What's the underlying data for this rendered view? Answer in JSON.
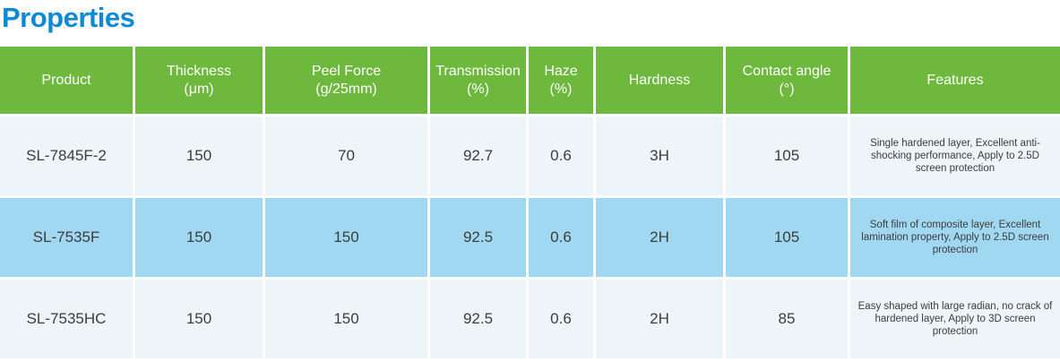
{
  "title": "Properties",
  "colors": {
    "title_text": "#0d8ad3",
    "header_bg": "#6eb83e",
    "header_text": "#ffffff",
    "row_light_bg": "#edf5f9",
    "row_blue_bg": "#a0d8f2",
    "cell_text": "#3c3c3c",
    "separator": "#ffffff"
  },
  "table": {
    "headers": [
      {
        "line1": "Product",
        "line2": ""
      },
      {
        "line1": "Thickness",
        "line2": "(μm)"
      },
      {
        "line1": "Peel Force",
        "line2": "(g/25mm)"
      },
      {
        "line1": "Transmission",
        "line2": "(%)"
      },
      {
        "line1": "Haze",
        "line2": "(%)"
      },
      {
        "line1": "Hardness",
        "line2": ""
      },
      {
        "line1": "Contact angle",
        "line2": "(°)"
      },
      {
        "line1": "Features",
        "line2": ""
      }
    ],
    "rows": [
      {
        "product": "SL-7845F-2",
        "thickness": "150",
        "peel_force": "70",
        "transmission": "92.7",
        "haze": "0.6",
        "hardness": "3H",
        "contact_angle": "105",
        "features": "Single hardened layer, Excellent anti-shocking performance, Apply to 2.5D screen protection"
      },
      {
        "product": "SL-7535F",
        "thickness": "150",
        "peel_force": "150",
        "transmission": "92.5",
        "haze": "0.6",
        "hardness": "2H",
        "contact_angle": "105",
        "features": "Soft film of composite layer, Excellent lamination property, Apply to 2.5D screen protection"
      },
      {
        "product": "SL-7535HC",
        "thickness": "150",
        "peel_force": "150",
        "transmission": "92.5",
        "haze": "0.6",
        "hardness": "2H",
        "contact_angle": "85",
        "features": "Easy shaped with large radian, no crack of hardened layer, Apply to 3D screen protection"
      }
    ]
  }
}
